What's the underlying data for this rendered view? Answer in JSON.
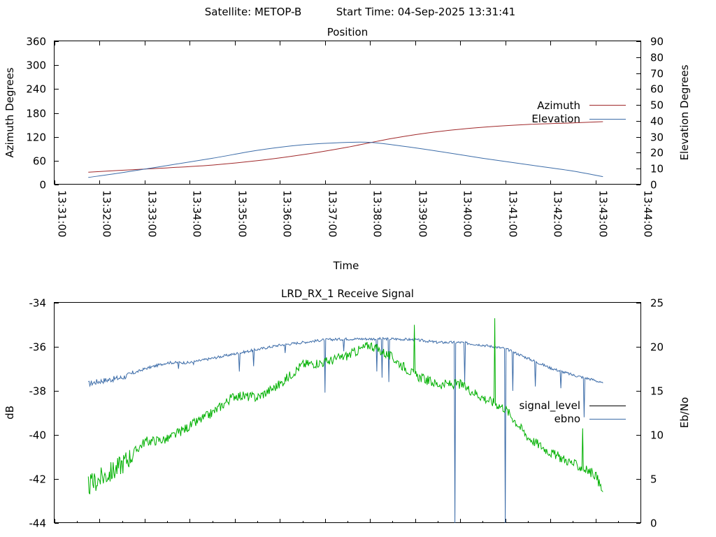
{
  "header": {
    "satellite": "Satellite: METOP-B",
    "start_time": "Start Time: 04-Sep-2025 13:31:41"
  },
  "colors": {
    "azimuth": "#a0282a",
    "elevation": "#3c6ca8",
    "signal_level": "#00b000",
    "signal_level_legend": "#000000",
    "ebno": "#3c6ca8"
  },
  "chart_data": [
    {
      "type": "line",
      "title": "Position",
      "xlabel": "Time",
      "ylabel": "Azimuth Degrees",
      "y2label": "Elevation Degrees",
      "xlim": [
        "13:31:00",
        "13:44:00"
      ],
      "ylim": [
        0,
        360
      ],
      "y2lim": [
        0,
        90
      ],
      "x_ticks": [
        "13:31:00",
        "13:32:00",
        "13:33:00",
        "13:34:00",
        "13:35:00",
        "13:36:00",
        "13:37:00",
        "13:38:00",
        "13:39:00",
        "13:40:00",
        "13:41:00",
        "13:42:00",
        "13:43:00",
        "13:44:00"
      ],
      "y_ticks": [
        "0",
        "60",
        "120",
        "180",
        "240",
        "300",
        "360"
      ],
      "y2_ticks": [
        "0",
        "10",
        "20",
        "30",
        "40",
        "50",
        "60",
        "70",
        "80",
        "90"
      ],
      "legend_position": "right",
      "series": [
        {
          "name": "Azimuth",
          "axis": "left",
          "points": [
            [
              "13:31:45",
              31
            ],
            [
              "13:32:30",
              36
            ],
            [
              "13:33:30",
              42
            ],
            [
              "13:34:30",
              49
            ],
            [
              "13:35:30",
              60
            ],
            [
              "13:36:30",
              75
            ],
            [
              "13:37:30",
              94
            ],
            [
              "13:38:30",
              116
            ],
            [
              "13:39:30",
              133
            ],
            [
              "13:40:30",
              144
            ],
            [
              "13:41:30",
              151
            ],
            [
              "13:42:30",
              155
            ],
            [
              "13:43:10",
              158
            ]
          ]
        },
        {
          "name": "Elevation",
          "axis": "right",
          "points": [
            [
              "13:31:45",
              4.5
            ],
            [
              "13:32:30",
              7.5
            ],
            [
              "13:33:30",
              12
            ],
            [
              "13:34:30",
              16.5
            ],
            [
              "13:35:30",
              21.5
            ],
            [
              "13:36:30",
              25
            ],
            [
              "13:37:30",
              26.5
            ],
            [
              "13:38:00",
              26.5
            ],
            [
              "13:38:30",
              25
            ],
            [
              "13:39:30",
              21
            ],
            [
              "13:40:30",
              16.5
            ],
            [
              "13:41:30",
              12.5
            ],
            [
              "13:42:30",
              8.5
            ],
            [
              "13:43:10",
              5
            ]
          ]
        }
      ]
    },
    {
      "type": "line",
      "title": "LRD_RX_1 Receive Signal",
      "xlabel": "",
      "ylabel": "dB",
      "y2label": "Eb/No",
      "xlim": [
        "13:31:00",
        "13:44:00"
      ],
      "ylim": [
        -44,
        -34
      ],
      "y2lim": [
        0,
        25
      ],
      "y_ticks": [
        "-34",
        "-36",
        "-38",
        "-40",
        "-42",
        "-44"
      ],
      "y2_ticks": [
        "0",
        "5",
        "10",
        "15",
        "20",
        "25"
      ],
      "legend_position": "right",
      "series": [
        {
          "name": "signal_level",
          "axis": "left",
          "noise": 0.22,
          "points": [
            [
              "13:31:45",
              -42.3
            ],
            [
              "13:32:00",
              -42.0
            ],
            [
              "13:32:20",
              -41.6
            ],
            [
              "13:32:40",
              -41.0
            ],
            [
              "13:33:00",
              -40.3
            ],
            [
              "13:33:30",
              -40.2
            ],
            [
              "13:34:00",
              -39.6
            ],
            [
              "13:34:30",
              -39.0
            ],
            [
              "13:35:00",
              -38.2
            ],
            [
              "13:35:30",
              -38.3
            ],
            [
              "13:36:00",
              -37.7
            ],
            [
              "13:36:30",
              -36.8
            ],
            [
              "13:37:00",
              -36.7
            ],
            [
              "13:37:30",
              -36.4
            ],
            [
              "13:38:00",
              -35.9
            ],
            [
              "13:38:30",
              -36.5
            ],
            [
              "13:39:00",
              -37.3
            ],
            [
              "13:39:30",
              -37.7
            ],
            [
              "13:40:00",
              -37.7
            ],
            [
              "13:40:30",
              -38.3
            ],
            [
              "13:41:00",
              -38.8
            ],
            [
              "13:41:30",
              -40.1
            ],
            [
              "13:42:00",
              -40.8
            ],
            [
              "13:42:30",
              -41.3
            ],
            [
              "13:43:00",
              -41.8
            ],
            [
              "13:43:10",
              -42.6
            ]
          ],
          "spikes": [
            [
              "13:38:59",
              -35.0
            ],
            [
              "13:40:46",
              -34.7
            ],
            [
              "13:42:43",
              -39.7
            ]
          ]
        },
        {
          "name": "ebno",
          "axis": "right",
          "noise": 0.15,
          "points": [
            [
              "13:31:45",
              15.8
            ],
            [
              "13:32:00",
              16.1
            ],
            [
              "13:32:30",
              16.5
            ],
            [
              "13:33:00",
              17.5
            ],
            [
              "13:33:30",
              18.2
            ],
            [
              "13:34:00",
              18.2
            ],
            [
              "13:34:30",
              18.7
            ],
            [
              "13:35:00",
              19.2
            ],
            [
              "13:35:30",
              19.7
            ],
            [
              "13:36:00",
              20.2
            ],
            [
              "13:36:30",
              20.5
            ],
            [
              "13:37:00",
              20.8
            ],
            [
              "13:37:30",
              20.9
            ],
            [
              "13:38:00",
              20.9
            ],
            [
              "13:38:30",
              20.9
            ],
            [
              "13:39:00",
              20.8
            ],
            [
              "13:39:30",
              20.5
            ],
            [
              "13:40:00",
              20.5
            ],
            [
              "13:40:30",
              20.2
            ],
            [
              "13:41:00",
              19.8
            ],
            [
              "13:41:30",
              18.7
            ],
            [
              "13:42:00",
              17.6
            ],
            [
              "13:42:30",
              16.8
            ],
            [
              "13:43:00",
              16.2
            ],
            [
              "13:43:10",
              15.8
            ]
          ],
          "dips": [
            [
              "13:33:45",
              17.5
            ],
            [
              "13:34:05",
              18.0
            ],
            [
              "13:35:06",
              17.2
            ],
            [
              "13:35:25",
              17.8
            ],
            [
              "13:36:07",
              19.3
            ],
            [
              "13:37:00",
              14.8
            ],
            [
              "13:37:25",
              19.5
            ],
            [
              "13:38:09",
              17.2
            ],
            [
              "13:38:16",
              16.5
            ],
            [
              "13:38:25",
              16.0
            ],
            [
              "13:39:53",
              0
            ],
            [
              "13:40:06",
              16.0
            ],
            [
              "13:41:00",
              0
            ],
            [
              "13:41:10",
              15.0
            ],
            [
              "13:41:40",
              15.5
            ],
            [
              "13:42:14",
              15.3
            ],
            [
              "13:42:45",
              12.0
            ]
          ]
        }
      ]
    }
  ]
}
